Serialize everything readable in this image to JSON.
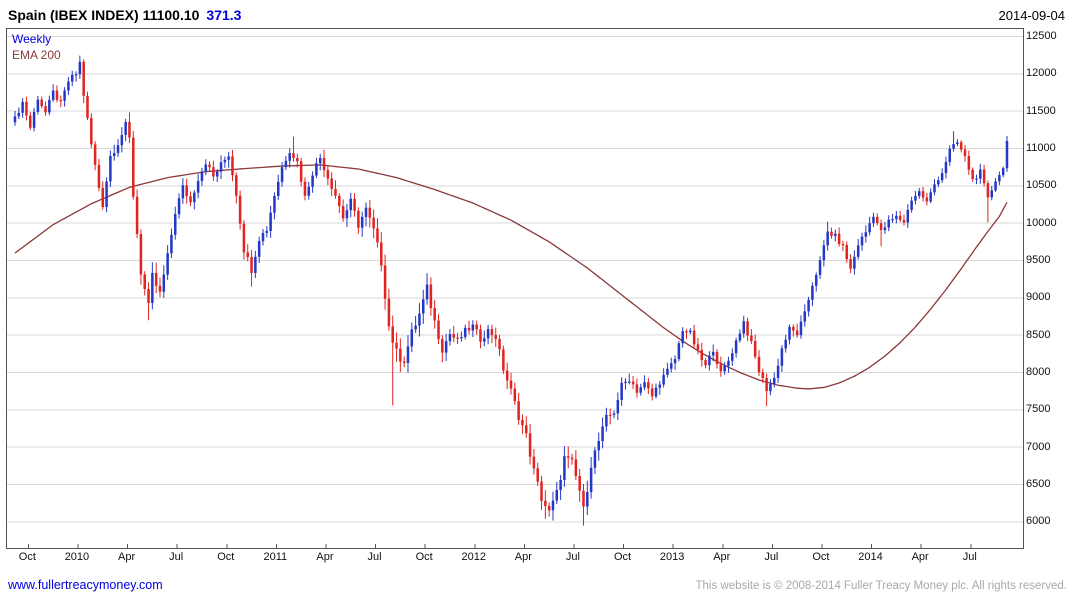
{
  "header": {
    "title": "Spain (IBEX INDEX) 11100.10",
    "change": "371.3",
    "date": "2014-09-04"
  },
  "footer": {
    "link": "www.fullertreacymoney.com",
    "copyright": "This website is © 2008-2014 Fuller Treacy Money plc. All rights reserved."
  },
  "chart_data": {
    "type": "candlestick",
    "title": "Spain (IBEX INDEX)",
    "timeframe": "Weekly",
    "overlay": "EMA 200",
    "last_price": 11100.1,
    "change": 371.3,
    "date": "2014-09-04",
    "n_weeks": 261,
    "y_axis": {
      "min": 5650,
      "max": 12600,
      "ticks": [
        6000,
        6500,
        7000,
        7500,
        8000,
        8500,
        9000,
        9500,
        10000,
        10500,
        11000,
        11500,
        12000,
        12500
      ]
    },
    "x_axis": {
      "labels": [
        {
          "text": "Oct",
          "week": 3.5
        },
        {
          "text": "2010",
          "week": 16.5
        },
        {
          "text": "Apr",
          "week": 29.5
        },
        {
          "text": "Jul",
          "week": 42.5
        },
        {
          "text": "Oct",
          "week": 55.5
        },
        {
          "text": "2011",
          "week": 68.5
        },
        {
          "text": "Apr",
          "week": 81.5
        },
        {
          "text": "Jul",
          "week": 94.5
        },
        {
          "text": "Oct",
          "week": 107.5
        },
        {
          "text": "2012",
          "week": 120.5
        },
        {
          "text": "Apr",
          "week": 133.5
        },
        {
          "text": "Jul",
          "week": 146.5
        },
        {
          "text": "Oct",
          "week": 159.5
        },
        {
          "text": "2013",
          "week": 172.5
        },
        {
          "text": "Apr",
          "week": 185.5
        },
        {
          "text": "Jul",
          "week": 198.5
        },
        {
          "text": "Oct",
          "week": 211.5
        },
        {
          "text": "2014",
          "week": 224.5
        },
        {
          "text": "Apr",
          "week": 237.5
        },
        {
          "text": "Jul",
          "week": 250.5
        }
      ]
    },
    "weekly_close_anchors_est": [
      [
        0,
        11400
      ],
      [
        2,
        11620
      ],
      [
        4,
        11280
      ],
      [
        6,
        11680
      ],
      [
        8,
        11480
      ],
      [
        10,
        11750
      ],
      [
        12,
        11600
      ],
      [
        14,
        11900
      ],
      [
        16,
        12000
      ],
      [
        17,
        12150
      ],
      [
        18,
        11720
      ],
      [
        20,
        11050
      ],
      [
        22,
        10480
      ],
      [
        23,
        10250
      ],
      [
        25,
        10900
      ],
      [
        27,
        11080
      ],
      [
        29,
        11300
      ],
      [
        30,
        11120
      ],
      [
        31,
        10380
      ],
      [
        33,
        9350
      ],
      [
        35,
        8870
      ],
      [
        36,
        9280
      ],
      [
        38,
        9050
      ],
      [
        40,
        9550
      ],
      [
        42,
        10150
      ],
      [
        44,
        10480
      ],
      [
        46,
        10280
      ],
      [
        48,
        10600
      ],
      [
        50,
        10820
      ],
      [
        52,
        10620
      ],
      [
        54,
        10780
      ],
      [
        56,
        10920
      ],
      [
        58,
        10400
      ],
      [
        60,
        9650
      ],
      [
        62,
        9380
      ],
      [
        64,
        9800
      ],
      [
        66,
        9920
      ],
      [
        68,
        10380
      ],
      [
        70,
        10750
      ],
      [
        72,
        10980
      ],
      [
        74,
        10820
      ],
      [
        76,
        10350
      ],
      [
        78,
        10680
      ],
      [
        80,
        10880
      ],
      [
        82,
        10620
      ],
      [
        84,
        10380
      ],
      [
        86,
        10080
      ],
      [
        88,
        10280
      ],
      [
        90,
        9980
      ],
      [
        92,
        10180
      ],
      [
        94,
        9900
      ],
      [
        96,
        9480
      ],
      [
        98,
        8620
      ],
      [
        100,
        8250
      ],
      [
        102,
        8180
      ],
      [
        104,
        8520
      ],
      [
        106,
        8780
      ],
      [
        108,
        9120
      ],
      [
        110,
        8680
      ],
      [
        112,
        8320
      ],
      [
        114,
        8520
      ],
      [
        116,
        8420
      ],
      [
        118,
        8550
      ],
      [
        120,
        8620
      ],
      [
        122,
        8450
      ],
      [
        124,
        8560
      ],
      [
        126,
        8480
      ],
      [
        128,
        8050
      ],
      [
        130,
        7750
      ],
      [
        132,
        7420
      ],
      [
        134,
        7150
      ],
      [
        136,
        6680
      ],
      [
        138,
        6320
      ],
      [
        140,
        6120
      ],
      [
        142,
        6380
      ],
      [
        144,
        6850
      ],
      [
        146,
        6780
      ],
      [
        148,
        6420
      ],
      [
        149,
        6150
      ],
      [
        151,
        6780
      ],
      [
        153,
        7080
      ],
      [
        155,
        7380
      ],
      [
        157,
        7480
      ],
      [
        159,
        7820
      ],
      [
        161,
        7920
      ],
      [
        163,
        7760
      ],
      [
        165,
        7850
      ],
      [
        167,
        7680
      ],
      [
        169,
        7880
      ],
      [
        171,
        8020
      ],
      [
        173,
        8180
      ],
      [
        175,
        8580
      ],
      [
        177,
        8520
      ],
      [
        179,
        8260
      ],
      [
        181,
        8080
      ],
      [
        183,
        8320
      ],
      [
        185,
        7980
      ],
      [
        187,
        8160
      ],
      [
        189,
        8420
      ],
      [
        191,
        8680
      ],
      [
        193,
        8380
      ],
      [
        195,
        8020
      ],
      [
        197,
        7780
      ],
      [
        199,
        7920
      ],
      [
        201,
        8320
      ],
      [
        203,
        8580
      ],
      [
        205,
        8520
      ],
      [
        207,
        8780
      ],
      [
        209,
        9180
      ],
      [
        211,
        9480
      ],
      [
        213,
        9880
      ],
      [
        215,
        9820
      ],
      [
        217,
        9680
      ],
      [
        219,
        9380
      ],
      [
        221,
        9720
      ],
      [
        223,
        9880
      ],
      [
        225,
        10120
      ],
      [
        227,
        9880
      ],
      [
        229,
        10020
      ],
      [
        231,
        10080
      ],
      [
        233,
        10020
      ],
      [
        235,
        10320
      ],
      [
        237,
        10420
      ],
      [
        239,
        10280
      ],
      [
        241,
        10520
      ],
      [
        243,
        10680
      ],
      [
        245,
        10980
      ],
      [
        247,
        11080
      ],
      [
        249,
        10880
      ],
      [
        251,
        10580
      ],
      [
        253,
        10680
      ],
      [
        255,
        10320
      ],
      [
        257,
        10580
      ],
      [
        259,
        10729
      ],
      [
        260,
        11100
      ]
    ],
    "ema200_anchors_est": [
      [
        0,
        9600
      ],
      [
        10,
        9980
      ],
      [
        20,
        10260
      ],
      [
        30,
        10480
      ],
      [
        40,
        10610
      ],
      [
        50,
        10690
      ],
      [
        60,
        10730
      ],
      [
        70,
        10765
      ],
      [
        80,
        10780
      ],
      [
        90,
        10725
      ],
      [
        100,
        10610
      ],
      [
        110,
        10450
      ],
      [
        120,
        10270
      ],
      [
        130,
        10040
      ],
      [
        140,
        9750
      ],
      [
        150,
        9400
      ],
      [
        160,
        9000
      ],
      [
        165,
        8800
      ],
      [
        170,
        8600
      ],
      [
        175,
        8420
      ],
      [
        180,
        8260
      ],
      [
        185,
        8120
      ],
      [
        190,
        8000
      ],
      [
        195,
        7900
      ],
      [
        200,
        7830
      ],
      [
        205,
        7790
      ],
      [
        208,
        7780
      ],
      [
        212,
        7800
      ],
      [
        216,
        7860
      ],
      [
        220,
        7950
      ],
      [
        224,
        8070
      ],
      [
        228,
        8220
      ],
      [
        232,
        8400
      ],
      [
        236,
        8610
      ],
      [
        240,
        8850
      ],
      [
        244,
        9110
      ],
      [
        248,
        9390
      ],
      [
        252,
        9680
      ],
      [
        255,
        9890
      ],
      [
        258,
        10090
      ],
      [
        260,
        10280
      ]
    ],
    "volatility_anchors": [
      [
        0,
        130
      ],
      [
        17,
        150
      ],
      [
        23,
        170
      ],
      [
        31,
        220
      ],
      [
        36,
        230
      ],
      [
        45,
        160
      ],
      [
        60,
        180
      ],
      [
        75,
        160
      ],
      [
        95,
        220
      ],
      [
        100,
        300
      ],
      [
        110,
        220
      ],
      [
        120,
        160
      ],
      [
        130,
        200
      ],
      [
        140,
        230
      ],
      [
        150,
        250
      ],
      [
        160,
        180
      ],
      [
        172,
        150
      ],
      [
        185,
        160
      ],
      [
        200,
        160
      ],
      [
        213,
        140
      ],
      [
        225,
        150
      ],
      [
        237,
        120
      ],
      [
        246,
        120
      ],
      [
        253,
        140
      ],
      [
        260,
        110
      ]
    ],
    "extremes": {
      "highs": [
        [
          17,
          12240
        ],
        [
          73,
          11160
        ],
        [
          108,
          9330
        ],
        [
          191,
          8760
        ],
        [
          213,
          10020
        ],
        [
          246,
          11230
        ],
        [
          260,
          11150
        ]
      ],
      "lows": [
        [
          35,
          8700
        ],
        [
          62,
          9150
        ],
        [
          99,
          7560
        ],
        [
          139,
          6040
        ],
        [
          149,
          5950
        ],
        [
          197,
          7550
        ],
        [
          227,
          9690
        ],
        [
          255,
          10010
        ]
      ]
    },
    "colors": {
      "up": "#2438c8",
      "down": "#e02421",
      "ema": "#8c3838",
      "grid": "#d8d8d8",
      "border": "#555555",
      "axis_text": "#111111",
      "accent_blue": "#0000dd"
    },
    "legend_position": "top-left-inside",
    "grid": "horizontal-only"
  }
}
